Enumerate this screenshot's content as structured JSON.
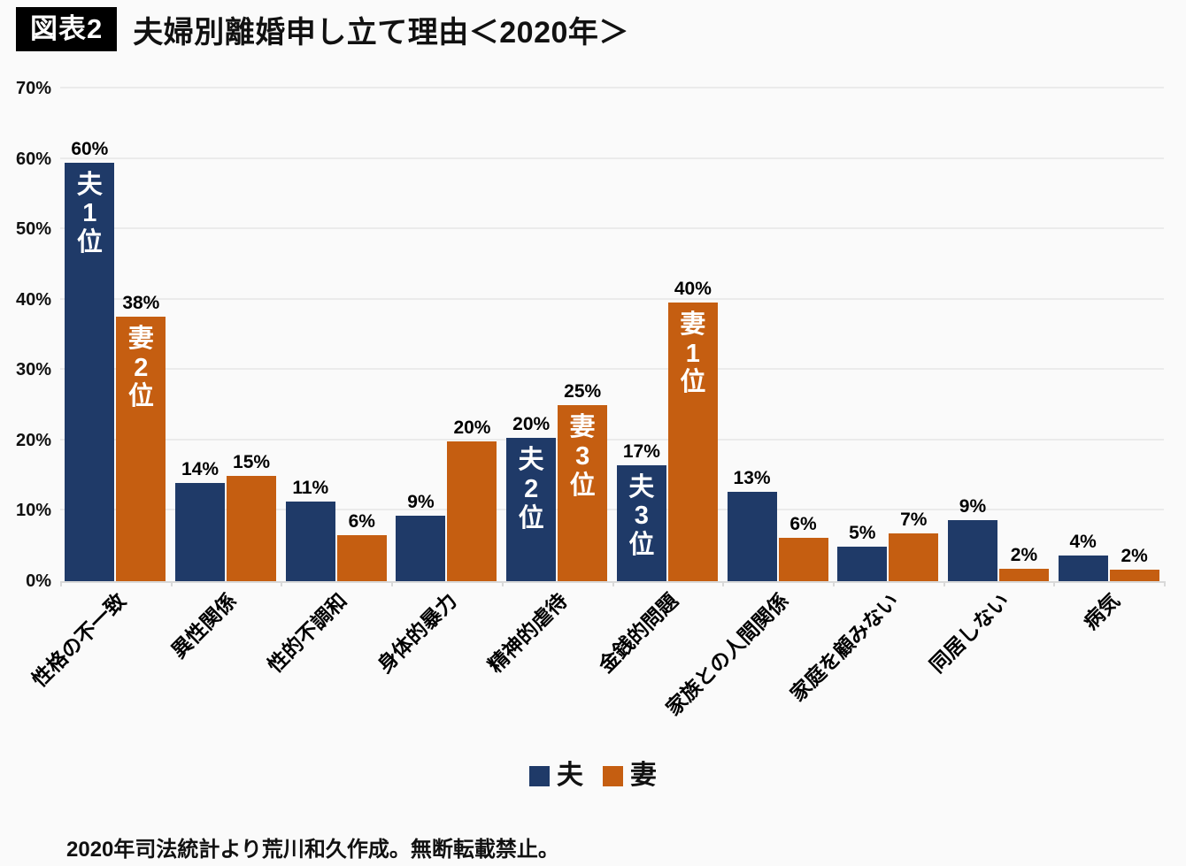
{
  "header": {
    "badge": "図表2",
    "title": "夫婦別離婚申し立て理由＜2020年＞"
  },
  "chart_data": {
    "type": "bar",
    "title": "夫婦別離婚申し立て理由＜2020年＞",
    "categories": [
      "性格の不一致",
      "異性関係",
      "性的不調和",
      "身体的暴力",
      "精神的虐待",
      "金銭的問題",
      "家族との人間関係",
      "家庭を顧みない",
      "同居しない",
      "病気"
    ],
    "series": [
      {
        "name": "夫",
        "color": "#1F3A68",
        "values": [
          59.5,
          13.9,
          11.3,
          9.3,
          20.3,
          16.5,
          12.7,
          4.9,
          8.7,
          3.7
        ],
        "labels": [
          "60%",
          "14%",
          "11%",
          "9%",
          "20%",
          "17%",
          "13%",
          "5%",
          "9%",
          "4%"
        ],
        "annotations": {
          "0": "夫\n1\n位",
          "4": "夫\n2\n位",
          "5": "夫\n3\n位"
        }
      },
      {
        "name": "妻",
        "color": "#C55E11",
        "values": [
          37.6,
          14.9,
          6.5,
          19.8,
          25.0,
          39.6,
          6.2,
          6.8,
          1.7,
          1.6
        ],
        "labels": [
          "38%",
          "15%",
          "6%",
          "20%",
          "25%",
          "40%",
          "6%",
          "7%",
          "2%",
          "2%"
        ],
        "annotations": {
          "0": "妻\n2\n位",
          "4": "妻\n3\n位",
          "5": "妻\n1\n位"
        }
      }
    ],
    "ylim": [
      0,
      70
    ],
    "ytick_step": 10,
    "ytick_labels": [
      "0%",
      "10%",
      "20%",
      "30%",
      "40%",
      "50%",
      "60%",
      "70%"
    ],
    "xlabel": "",
    "ylabel": "",
    "grid": true,
    "legend_position": "bottom"
  },
  "legend": {
    "items": [
      {
        "label": "夫",
        "color": "#1F3A68"
      },
      {
        "label": "妻",
        "color": "#C55E11"
      }
    ]
  },
  "footer": {
    "credit": "2020年司法統計より荒川和久作成。無断転載禁止。"
  }
}
